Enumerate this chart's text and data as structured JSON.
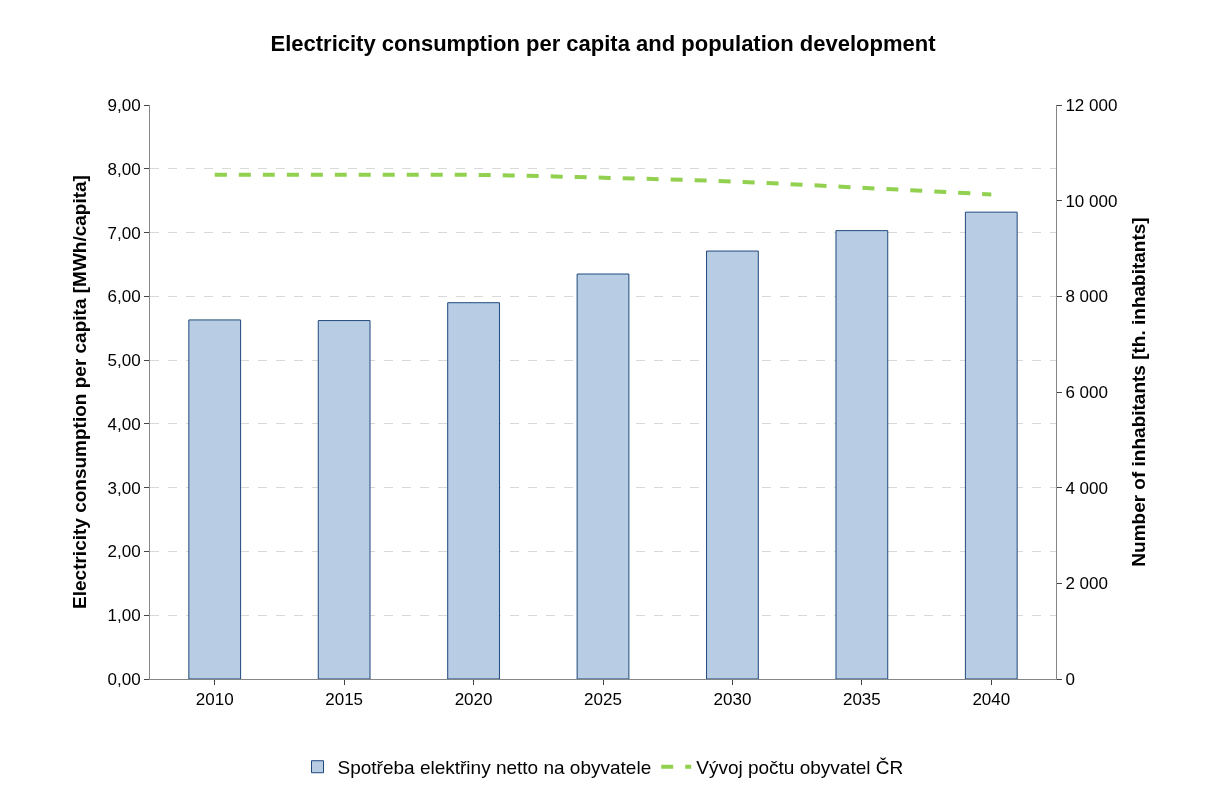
{
  "chart_data": {
    "type": "bar",
    "title": "Electricity consumption per capita and population development",
    "ylabel": "Electricity consumption per capita [MWh/capita]",
    "y2label": "Number of inhabitants [th. inhabitants]",
    "categories": [
      "2010",
      "2015",
      "2020",
      "2025",
      "2030",
      "2035",
      "2040"
    ],
    "series": [
      {
        "name": "Spotřeba elektřiny netto na obyvatele",
        "color": "#b8cce4",
        "values": [
          5.63,
          5.62,
          5.9,
          6.35,
          6.71,
          7.03,
          7.32
        ]
      },
      {
        "name": "Vývoj počtu obyvatel ČR",
        "type": "line",
        "axis": "y2",
        "color": "#92d050",
        "line_style": "dashed",
        "values": [
          10540,
          10540,
          10540,
          10480,
          10400,
          10270,
          10130
        ]
      }
    ],
    "ylim": [
      0,
      9
    ],
    "yticks": [
      {
        "value": 0,
        "label": "0,00"
      },
      {
        "value": 1,
        "label": "1,00"
      },
      {
        "value": 2,
        "label": "2,00"
      },
      {
        "value": 3,
        "label": "3,00"
      },
      {
        "value": 4,
        "label": "4,00"
      },
      {
        "value": 5,
        "label": "5,00"
      },
      {
        "value": 6,
        "label": "6,00"
      },
      {
        "value": 7,
        "label": "7,00"
      },
      {
        "value": 8,
        "label": "8,00"
      },
      {
        "value": 9,
        "label": "9,00"
      }
    ],
    "y2lim": [
      0,
      12000
    ],
    "y2ticks": [
      0,
      {
        "value": 2000,
        "label": "2 000"
      },
      {
        "value": 4000,
        "label": "4 000"
      },
      {
        "value": 6000,
        "label": "6 000"
      },
      {
        "value": 8000,
        "label": "8 000"
      },
      {
        "value": 10000,
        "label": "10 000"
      },
      {
        "value": 12000,
        "label": "12 000"
      }
    ],
    "grid": "y",
    "legend": "bottom"
  }
}
